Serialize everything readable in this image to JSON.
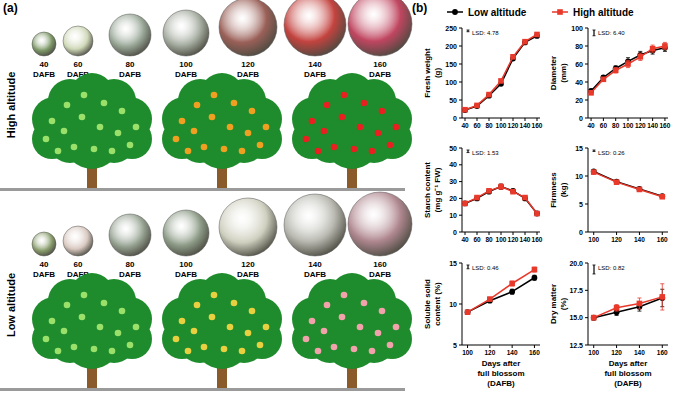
{
  "panel_a": {
    "label": "(a)",
    "stages": [
      40,
      60,
      80,
      100,
      120,
      140,
      160
    ],
    "stage_unit": "DAFB",
    "rows": [
      "High altitude",
      "Low altitude"
    ]
  },
  "panel_b_label": "(b)",
  "chart_data": [
    {
      "type": "line",
      "ylabel": [
        "Fresh weight",
        "(g)"
      ],
      "x": [
        40,
        60,
        80,
        100,
        120,
        140,
        160
      ],
      "xlim": [
        35,
        165
      ],
      "xticks": [
        40,
        60,
        80,
        100,
        120,
        140,
        160
      ],
      "ylim": [
        0,
        250
      ],
      "yticks": [
        0,
        50,
        100,
        150,
        200,
        250
      ],
      "lsd": 4.78,
      "lsd_label": "LSD: 4.78",
      "legend": "top",
      "series": [
        {
          "name": "Low altitude",
          "color": "#000000",
          "marker": "circle",
          "values": [
            22,
            33,
            62,
            95,
            165,
            210,
            228
          ],
          "errors": [
            1,
            1.5,
            2,
            3,
            4,
            4,
            4
          ]
        },
        {
          "name": "High altitude",
          "color": "#e8392b",
          "marker": "square",
          "values": [
            23,
            35,
            65,
            103,
            170,
            212,
            232
          ],
          "errors": [
            1,
            1.5,
            2,
            3,
            4,
            4,
            4
          ]
        }
      ]
    },
    {
      "type": "line",
      "ylabel": [
        "Diameter",
        "(mm)"
      ],
      "x": [
        40,
        60,
        80,
        100,
        120,
        140,
        160
      ],
      "xlim": [
        35,
        165
      ],
      "xticks": [
        40,
        60,
        80,
        100,
        120,
        140,
        160
      ],
      "ylim": [
        0,
        100
      ],
      "yticks": [
        0,
        20,
        40,
        60,
        80,
        100
      ],
      "lsd": 6.4,
      "lsd_label": "LSD: 6.40",
      "series": [
        {
          "color": "#000000",
          "marker": "circle",
          "values": [
            30,
            45,
            55,
            63,
            70,
            75,
            78
          ],
          "errors": [
            2,
            2,
            3,
            4,
            4,
            4,
            4
          ]
        },
        {
          "color": "#e8392b",
          "marker": "square",
          "values": [
            28,
            43,
            53,
            60,
            68,
            77,
            80
          ],
          "errors": [
            2,
            2,
            3,
            4,
            4,
            4,
            4
          ]
        }
      ]
    },
    {
      "type": "line",
      "ylabel": [
        "Starch content",
        "(mg g⁻¹ FW)"
      ],
      "x": [
        40,
        60,
        80,
        100,
        120,
        140,
        160
      ],
      "xlim": [
        35,
        165
      ],
      "xticks": [
        40,
        60,
        80,
        100,
        120,
        140,
        160
      ],
      "ylim": [
        0,
        50
      ],
      "yticks": [
        0,
        10,
        20,
        30,
        40,
        50
      ],
      "lsd": 1.53,
      "lsd_label": "LSD: 1.53",
      "series": [
        {
          "color": "#000000",
          "marker": "circle",
          "values": [
            17,
            20,
            24,
            27,
            24.5,
            20,
            11
          ],
          "errors": [
            0.8,
            0.8,
            1,
            1.5,
            1,
            0.8,
            0.6
          ]
        },
        {
          "color": "#e8392b",
          "marker": "square",
          "values": [
            17,
            20.5,
            24.5,
            27,
            24,
            20.5,
            11
          ],
          "errors": [
            0.8,
            0.8,
            1,
            1.5,
            1,
            0.8,
            0.6
          ]
        }
      ]
    },
    {
      "type": "line",
      "ylabel": [
        "Firmness",
        "(kg)"
      ],
      "x": [
        100,
        120,
        140,
        160
      ],
      "xlim": [
        95,
        165
      ],
      "xticks": [
        100,
        120,
        140,
        160
      ],
      "ylim": [
        0,
        15
      ],
      "yticks": [
        0,
        5,
        10,
        15
      ],
      "lsd": 0.26,
      "lsd_label": "LSD: 0.26",
      "series": [
        {
          "color": "#000000",
          "marker": "circle",
          "values": [
            10.8,
            9,
            7.7,
            6.4
          ],
          "errors": [
            0.2,
            0.2,
            0.2,
            0.2
          ]
        },
        {
          "color": "#e8392b",
          "marker": "square",
          "values": [
            10.7,
            8.9,
            7.6,
            6.3
          ],
          "errors": [
            0.2,
            0.2,
            0.2,
            0.2
          ]
        }
      ]
    },
    {
      "type": "line",
      "ylabel": [
        "Soluble solid",
        "content (%)"
      ],
      "xlabel": [
        "Days after",
        "full blossom",
        "(DAFB)"
      ],
      "x": [
        100,
        120,
        140,
        160
      ],
      "xlim": [
        95,
        165
      ],
      "xticks": [
        100,
        120,
        140,
        160
      ],
      "ylim": [
        5,
        15
      ],
      "yticks": [
        5,
        10,
        15
      ],
      "lsd": 0.46,
      "lsd_label": "LSD: 0.46",
      "series": [
        {
          "color": "#000000",
          "marker": "circle",
          "values": [
            9,
            10.4,
            11.5,
            13.2
          ],
          "errors": [
            0.2,
            0.2,
            0.3,
            0.3
          ]
        },
        {
          "color": "#e8392b",
          "marker": "square",
          "values": [
            9,
            10.6,
            12.5,
            14.2
          ],
          "errors": [
            0.2,
            0.2,
            0.3,
            0.3
          ]
        }
      ]
    },
    {
      "type": "line",
      "ylabel": [
        "Dry matter",
        "(%)"
      ],
      "xlabel": [
        "Days after",
        "full blossom",
        "(DAFB)"
      ],
      "x": [
        100,
        120,
        140,
        160
      ],
      "xlim": [
        95,
        165
      ],
      "xticks": [
        100,
        120,
        140,
        160
      ],
      "ylim": [
        12.5,
        20
      ],
      "yticks": [
        12.5,
        {
          "value": 15,
          "label": "15.0"
        },
        17.5,
        {
          "value": 20,
          "label": "20.0"
        }
      ],
      "lsd": 0.82,
      "lsd_label": "LSD: 0.82",
      "series": [
        {
          "color": "#000000",
          "marker": "circle",
          "values": [
            15,
            15.5,
            16,
            16.8
          ],
          "errors": [
            0.2,
            0.3,
            0.4,
            0.8
          ]
        },
        {
          "color": "#e8392b",
          "marker": "square",
          "values": [
            15,
            15.9,
            16.3,
            16.9
          ],
          "errors": [
            0.2,
            0.3,
            0.5,
            1.2
          ]
        }
      ]
    }
  ]
}
